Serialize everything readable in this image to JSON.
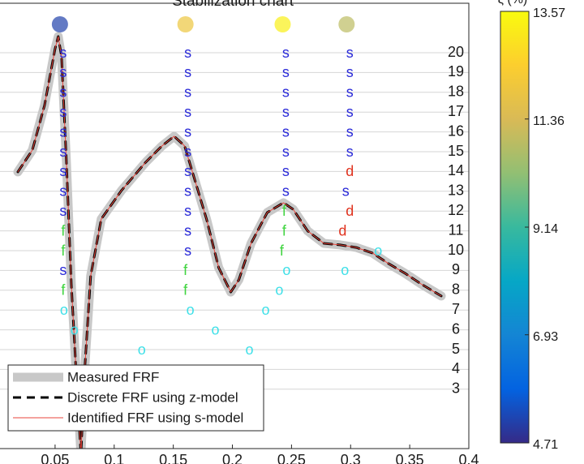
{
  "chart_data": {
    "type": "stabilization",
    "title": "Stabilization chart",
    "xlim": [
      0.0034,
      0.4
    ],
    "xticks": [
      0.05,
      0.1,
      0.15,
      0.2,
      0.25,
      0.3,
      0.35,
      0.4
    ],
    "ylim": [
      0,
      22.5
    ],
    "yticks": [
      3,
      4,
      5,
      6,
      7,
      8,
      9,
      10,
      11,
      12,
      13,
      14,
      15,
      16,
      17,
      18,
      19,
      20
    ],
    "grid": true,
    "frf": {
      "x": [
        0.0185,
        0.0308,
        0.0411,
        0.05,
        0.0527,
        0.0555,
        0.0596,
        0.0637,
        0.0678,
        0.0719,
        0.0753,
        0.0801,
        0.089,
        0.1062,
        0.1267,
        0.1404,
        0.1507,
        0.1596,
        0.1678,
        0.1781,
        0.1884,
        0.1986,
        0.2055,
        0.2158,
        0.2295,
        0.2432,
        0.2514,
        0.2637,
        0.2774,
        0.2911,
        0.3048,
        0.3185,
        0.3322,
        0.3459,
        0.3596,
        0.3767
      ],
      "y": [
        13.98,
        15.08,
        17.34,
        20.2,
        20.82,
        19.8,
        14.47,
        8.32,
        3.82,
        -0.28,
        4.23,
        8.73,
        11.6,
        13.04,
        14.47,
        15.29,
        15.78,
        15.29,
        13.65,
        11.6,
        9.14,
        7.91,
        8.53,
        10.37,
        11.93,
        12.42,
        12.09,
        10.99,
        10.37,
        10.29,
        10.16,
        9.88,
        9.34,
        8.86,
        8.32,
        7.71
      ]
    },
    "series": [
      {
        "name": "Measured FRF",
        "color": "#c8c8c8",
        "width": 11,
        "dash": "none"
      },
      {
        "name": "Discrete FRF using z-model",
        "color": "#000000",
        "width": 3,
        "dash": "10 7"
      },
      {
        "name": "Identified FRF using s-model",
        "color": "#e8453c",
        "width": 1,
        "dash": "none"
      }
    ],
    "markers": {
      "x": [
        0.0568,
        0.0568,
        0.0568,
        0.0568,
        0.0568,
        0.0568,
        0.0568,
        0.0568,
        0.0568,
        0.0568,
        0.0568,
        0.0568,
        0.0568,
        0.0575,
        0.0664,
        0.1623,
        0.1623,
        0.1623,
        0.1623,
        0.1623,
        0.1623,
        0.1623,
        0.1623,
        0.1623,
        0.1623,
        0.1623,
        0.1603,
        0.1603,
        0.1644,
        0.1856,
        0.1233,
        0.2144,
        0.2452,
        0.2452,
        0.2452,
        0.2452,
        0.2452,
        0.2452,
        0.2452,
        0.2452,
        0.2438,
        0.2438,
        0.2418,
        0.2459,
        0.2397,
        0.2281,
        0.2993,
        0.2993,
        0.2993,
        0.2993,
        0.2993,
        0.2993,
        0.2993,
        0.2959,
        0.2993,
        0.2932,
        0.2952,
        0.3233
      ],
      "order": [
        20,
        19,
        18,
        17,
        16,
        15,
        14,
        13,
        12,
        11,
        10,
        9,
        8,
        7,
        6,
        20,
        19,
        18,
        17,
        16,
        15,
        14,
        13,
        12,
        11,
        10,
        9,
        8,
        7,
        6,
        5,
        5,
        20,
        19,
        18,
        17,
        16,
        15,
        14,
        13,
        12,
        11,
        10,
        9,
        8,
        7,
        20,
        19,
        18,
        17,
        16,
        15,
        14,
        13,
        12,
        11,
        9,
        10
      ],
      "label": [
        "s",
        "s",
        "s",
        "s",
        "s",
        "s",
        "s",
        "s",
        "s",
        "f",
        "f",
        "s",
        "f",
        "o",
        "o",
        "s",
        "s",
        "s",
        "s",
        "s",
        "s",
        "s",
        "s",
        "s",
        "s",
        "s",
        "f",
        "f",
        "o",
        "o",
        "o",
        "o",
        "s",
        "s",
        "s",
        "s",
        "s",
        "s",
        "s",
        "s",
        "f",
        "f",
        "f",
        "o",
        "o",
        "o",
        "s",
        "s",
        "s",
        "s",
        "s",
        "s",
        "d",
        "s",
        "d",
        "d",
        "o",
        "o"
      ]
    },
    "marker_colors": {
      "s": "#2a2ad8",
      "f": "#3fd43f",
      "d": "#e0321e",
      "o": "#3fe0e8"
    },
    "poles": {
      "x": [
        0.0541,
        0.1603,
        0.2425,
        0.2966
      ],
      "damping": [
        5.15,
        12.0,
        13.3,
        10.9
      ]
    },
    "colorbar": {
      "label": "ξ (%)",
      "clim": [
        4.71,
        13.57
      ],
      "ticks": [
        4.71,
        6.93,
        9.14,
        11.36,
        13.57
      ],
      "colormap": [
        "#352a87",
        "#0363e1",
        "#1485d4",
        "#06a7c6",
        "#38b99e",
        "#92bf73",
        "#d9ba56",
        "#fcce2e",
        "#f9fb0e"
      ]
    }
  }
}
